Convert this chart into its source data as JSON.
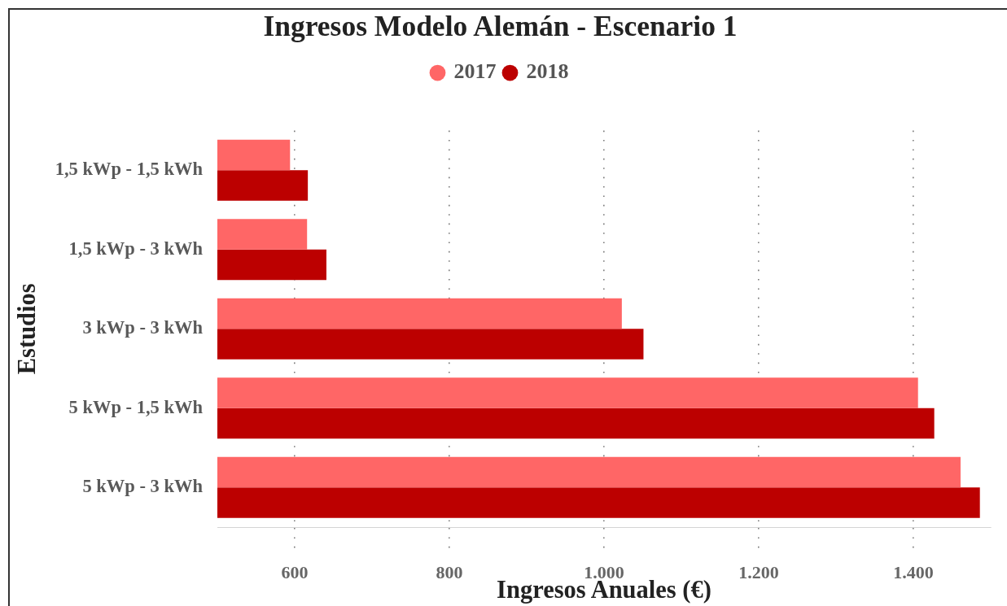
{
  "chart_data": {
    "type": "bar",
    "orientation": "horizontal",
    "title": "Ingresos Modelo Alemán - Escenario 1",
    "xlabel": "Ingresos Anuales (€)",
    "ylabel": "Estudios",
    "categories": [
      "1,5 kWp - 1,5 kWh",
      "1,5 kWp - 3 kWh",
      "3 kWp - 3 kWh",
      "5 kWp - 1,5 kWh",
      "5 kWp - 3 kWh"
    ],
    "series": [
      {
        "name": "2017",
        "color": "#ff6666",
        "values": [
          594,
          616,
          1023,
          1406,
          1461
        ]
      },
      {
        "name": "2018",
        "color": "#bc0000",
        "values": [
          617,
          641,
          1051,
          1427,
          1486
        ]
      }
    ],
    "xlim": [
      500,
      1500
    ],
    "xticks": [
      600,
      800,
      {
        "value": 1000,
        "label": "1.000"
      },
      {
        "value": 1200,
        "label": "1.200"
      },
      {
        "value": 1400,
        "label": "1.400"
      }
    ],
    "grid": "x",
    "legend": "top"
  }
}
